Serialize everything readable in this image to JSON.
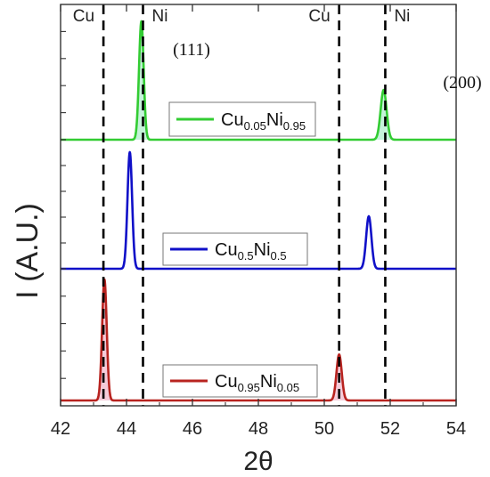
{
  "chart_data": {
    "type": "line",
    "xlabel": "2θ",
    "ylabel": "I (A.U.)",
    "xlim": [
      42,
      54
    ],
    "x_ticks": [
      "42",
      "44",
      "46",
      "48",
      "50",
      "52",
      "54"
    ],
    "reference_lines": [
      {
        "label": "Cu",
        "x": 43.3
      },
      {
        "label": "Ni",
        "x": 44.5
      },
      {
        "label": "Cu",
        "x": 50.45
      },
      {
        "label": "Ni",
        "x": 51.85
      }
    ],
    "annotations": [
      {
        "text": "(111)",
        "x": 45.2
      },
      {
        "text": "(200)",
        "x": 53.6
      }
    ],
    "series": [
      {
        "legend": {
          "base": "Cu",
          "sub1": "0.05",
          "mid": "Ni",
          "sub2": "0.95"
        },
        "color": "#33cc33",
        "fill": "#bff2d6",
        "panel": "top",
        "peaks": [
          {
            "x": 44.45,
            "height": 1.0,
            "width": 0.07
          },
          {
            "x": 51.8,
            "height": 0.42,
            "width": 0.09
          }
        ]
      },
      {
        "legend": {
          "base": "Cu",
          "sub1": "0.5",
          "mid": "Ni",
          "sub2": "0.5"
        },
        "color": "#1010c8",
        "fill": "",
        "panel": "middle",
        "peaks": [
          {
            "x": 44.1,
            "height": 1.0,
            "width": 0.07
          },
          {
            "x": 51.35,
            "height": 0.45,
            "width": 0.08
          }
        ]
      },
      {
        "legend": {
          "base": "Cu",
          "sub1": "0.95",
          "mid": "Ni",
          "sub2": "0.05"
        },
        "color": "#b8231f",
        "fill": "#f4c6d6",
        "panel": "bottom",
        "peaks": [
          {
            "x": 43.33,
            "height": 1.0,
            "width": 0.07
          },
          {
            "x": 50.45,
            "height": 0.38,
            "width": 0.08
          }
        ]
      }
    ]
  }
}
